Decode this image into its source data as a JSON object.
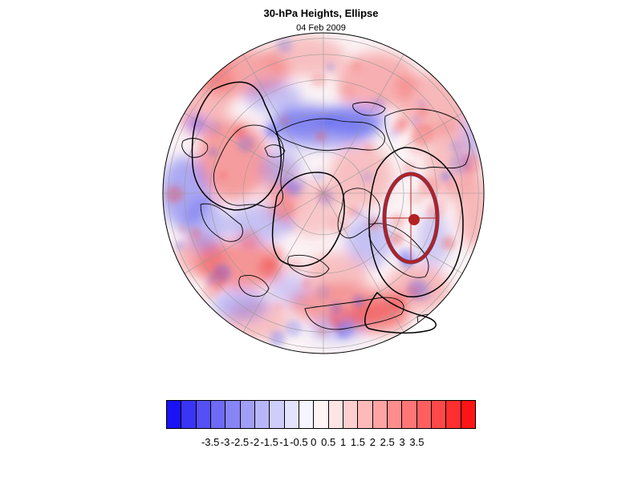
{
  "header": {
    "title": "30-hPa Heights, Ellipse",
    "date": "04 Feb 2009"
  },
  "map": {
    "projection": "polar-orthographic",
    "pole": "north",
    "field_colors": {
      "negative": "#4a50f0",
      "positive": "#f04848",
      "neutral": "#ffffff"
    },
    "ellipse_color": "#b22222",
    "contour_color": "#000000"
  },
  "colorbar": {
    "colors": [
      "#1a12f5",
      "#3a34f5",
      "#5550f5",
      "#6e6af5",
      "#8784f5",
      "#a09ef7",
      "#b8b6f9",
      "#cfcefb",
      "#e4e3fd",
      "#f5f5ff",
      "#fff5f5",
      "#ffe4e4",
      "#ffcfcf",
      "#ffb9b9",
      "#ffa3a3",
      "#ff8d8d",
      "#ff7676",
      "#ff5f5f",
      "#ff4848",
      "#ff2f2f",
      "#ff1515"
    ],
    "tick_labels": [
      "-3.5",
      "-3",
      "-2.5",
      "-2",
      "-1.5",
      "-1",
      "-0.5",
      "0",
      "0.5",
      "1",
      "1.5",
      "2",
      "2.5",
      "3",
      "3.5"
    ]
  }
}
